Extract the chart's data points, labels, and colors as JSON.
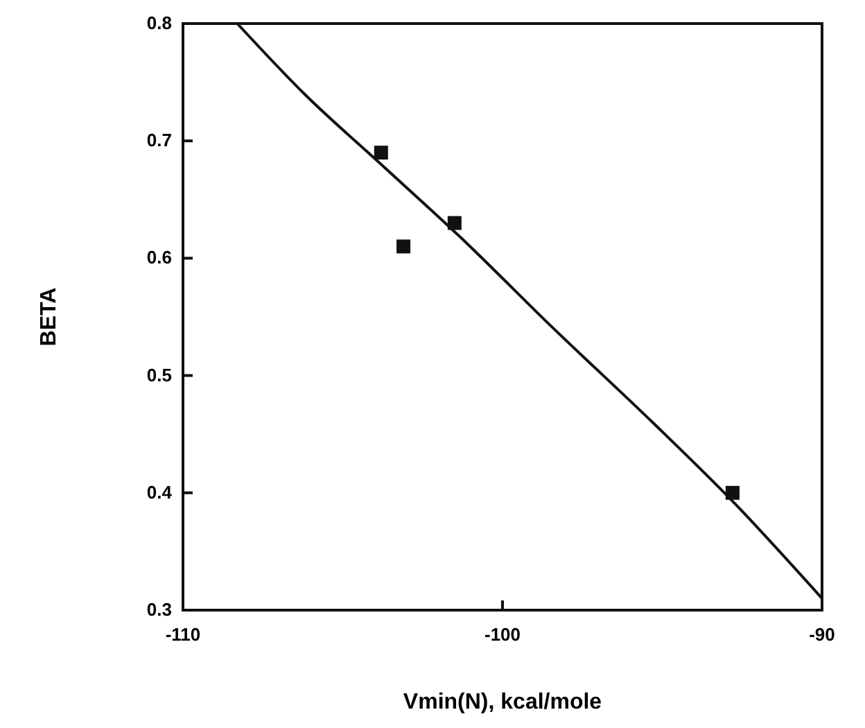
{
  "chart_data": {
    "type": "scatter",
    "xlabel": "Vmin(N), kcal/mole",
    "ylabel": "BETA",
    "xlim": [
      -110,
      -90
    ],
    "ylim": [
      0.3,
      0.8
    ],
    "xticks": [
      -110,
      -100,
      -90
    ],
    "yticks": [
      0.3,
      0.4,
      0.5,
      0.6,
      0.7,
      0.8
    ],
    "grid": false,
    "series": [
      {
        "color": "#111111",
        "marker": "square",
        "x": [
          -103.8,
          -103.1,
          -101.5,
          -92.8
        ],
        "values": [
          0.69,
          0.61,
          0.63,
          0.4
        ]
      },
      {
        "type": "line",
        "color": "#111111",
        "marker": "none",
        "line_style": "solid",
        "x": [
          -108.3,
          -106.2,
          -103.8,
          -101.4,
          -98.4,
          -95.3,
          -92.7,
          -90
        ],
        "values": [
          0.8,
          0.74,
          0.68,
          0.62,
          0.54,
          0.46,
          0.39,
          0.31
        ]
      }
    ]
  }
}
